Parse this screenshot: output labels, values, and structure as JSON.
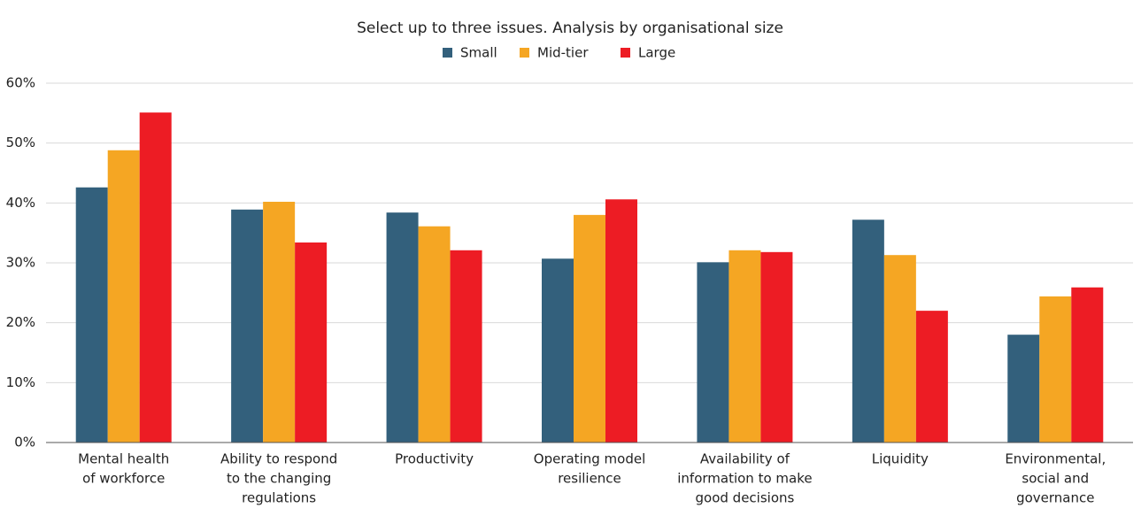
{
  "chart_data": {
    "type": "bar",
    "title": "Select up to three issues. Analysis by organisational size",
    "categories": [
      [
        "Mental health",
        "of workforce"
      ],
      [
        "Ability to respond",
        "to the changing",
        "regulations"
      ],
      [
        "Productivity"
      ],
      [
        "Operating model",
        "resilience"
      ],
      [
        "Availability of",
        "information to make",
        "good decisions"
      ],
      [
        "Liquidity"
      ],
      [
        "Environmental,",
        "social and",
        "governance"
      ]
    ],
    "series": [
      {
        "name": "Small",
        "color": "#33607c",
        "values": [
          42.6,
          38.9,
          38.4,
          30.7,
          30.1,
          37.2,
          18.0
        ]
      },
      {
        "name": "Mid-tier",
        "color": "#f5a623",
        "values": [
          48.8,
          40.2,
          36.1,
          38.0,
          32.1,
          31.3,
          24.4
        ]
      },
      {
        "name": "Large",
        "color": "#ed1c24",
        "values": [
          55.1,
          33.4,
          32.1,
          40.6,
          31.8,
          22.0,
          25.9
        ]
      }
    ],
    "ylim": [
      0,
      60
    ],
    "yticks": [
      {
        "value": 0,
        "label": "0%"
      },
      {
        "value": 10,
        "label": "10%"
      },
      {
        "value": 20,
        "label": "20%"
      },
      {
        "value": 30,
        "label": "30%"
      },
      {
        "value": 40,
        "label": "40%"
      },
      {
        "value": 50,
        "label": "50%"
      },
      {
        "value": 60,
        "label": "60%"
      }
    ],
    "grid": true,
    "legend": "top"
  }
}
